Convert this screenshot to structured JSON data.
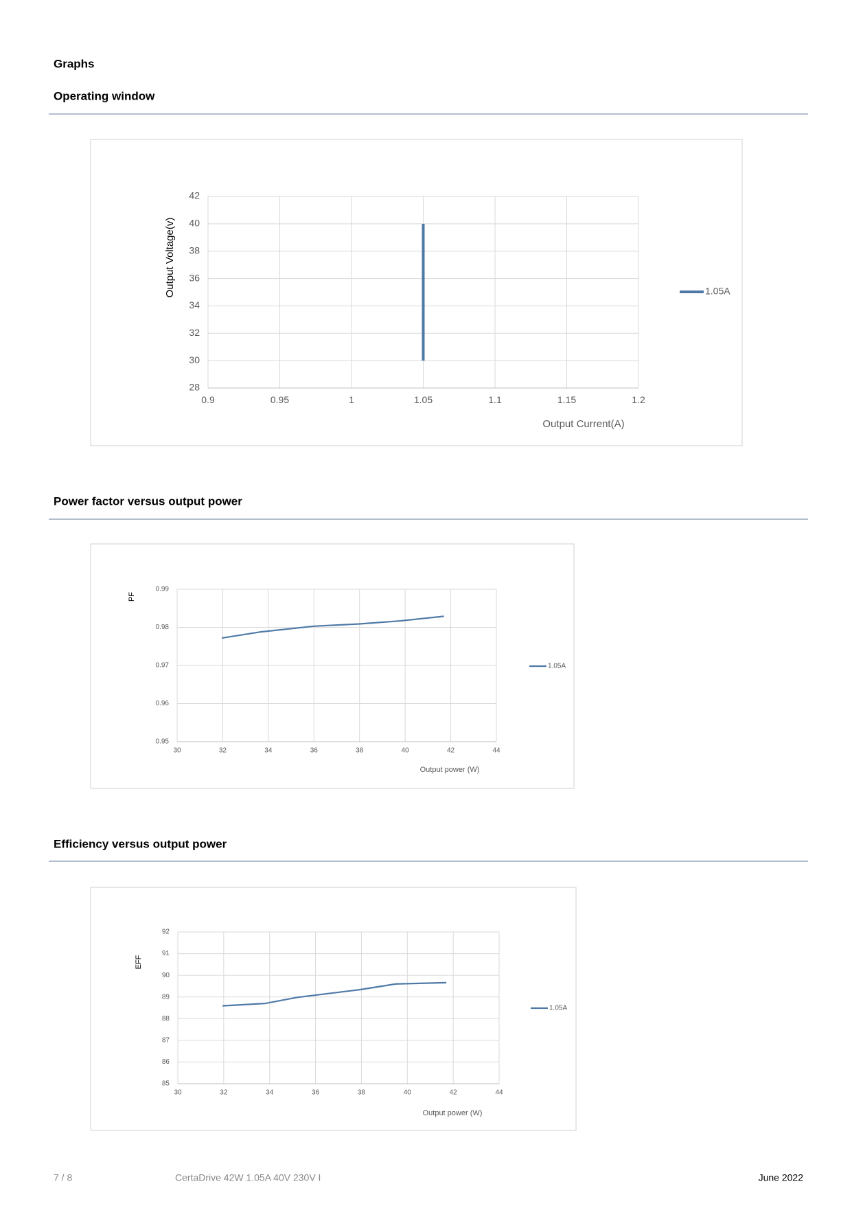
{
  "heading": "Graphs",
  "chart_data": [
    {
      "type": "line",
      "title": "Operating window",
      "x_label": "Output Current(A)",
      "y_label": "Output Voltage(v)",
      "x": [
        1.05,
        1.05
      ],
      "series": [
        {
          "name": "1.05A",
          "color": "#4e79a7",
          "values": [
            30,
            40
          ]
        }
      ],
      "xlim": [
        0.9,
        1.2
      ],
      "xticks": [
        0.9,
        0.95,
        1,
        1.05,
        1.1,
        1.15,
        1.2
      ],
      "ylim": [
        28,
        42
      ],
      "yticks": [
        28,
        30,
        32,
        34,
        36,
        38,
        40,
        42
      ],
      "grid": true,
      "legend": "right"
    },
    {
      "type": "line",
      "title": "Power factor versus output power",
      "x_label": "Output power (W)",
      "y_label": "PF",
      "x": [
        31.96,
        33.65,
        36.0,
        38.0,
        39.8,
        41.7
      ],
      "series": [
        {
          "name": "1.05A",
          "color": "#4e79a7",
          "values": [
            0.9772,
            0.9788,
            0.9803,
            0.9809,
            0.9817,
            0.9829
          ]
        }
      ],
      "xlim": [
        30,
        44
      ],
      "xticks": [
        30,
        32,
        34,
        36,
        38,
        40,
        42,
        44
      ],
      "ylim": [
        0.95,
        0.99
      ],
      "yticks": [
        0.95,
        0.96,
        0.97,
        0.98,
        0.99
      ],
      "grid": true,
      "legend": "right"
    },
    {
      "type": "line",
      "title": "Efficiency versus output power",
      "x_label": "Output power (W)",
      "y_label": "EFF",
      "x": [
        31.95,
        33.8,
        35.2,
        37.95,
        39.5,
        41.7
      ],
      "series": [
        {
          "name": "1.05A",
          "color": "#4e79a7",
          "values": [
            88.59,
            88.7,
            88.98,
            89.34,
            89.6,
            89.66
          ]
        }
      ],
      "xlim": [
        30,
        44
      ],
      "xticks": [
        30,
        32,
        34,
        36,
        38,
        40,
        42,
        44
      ],
      "ylim": [
        85,
        92
      ],
      "yticks": [
        85,
        86,
        87,
        88,
        89,
        90,
        91,
        92
      ],
      "grid": true,
      "legend": "right"
    }
  ],
  "footer": {
    "page": "7 / 8",
    "product": "CertaDrive 42W 1.05A 40V 230V I",
    "date": "June 2022"
  }
}
